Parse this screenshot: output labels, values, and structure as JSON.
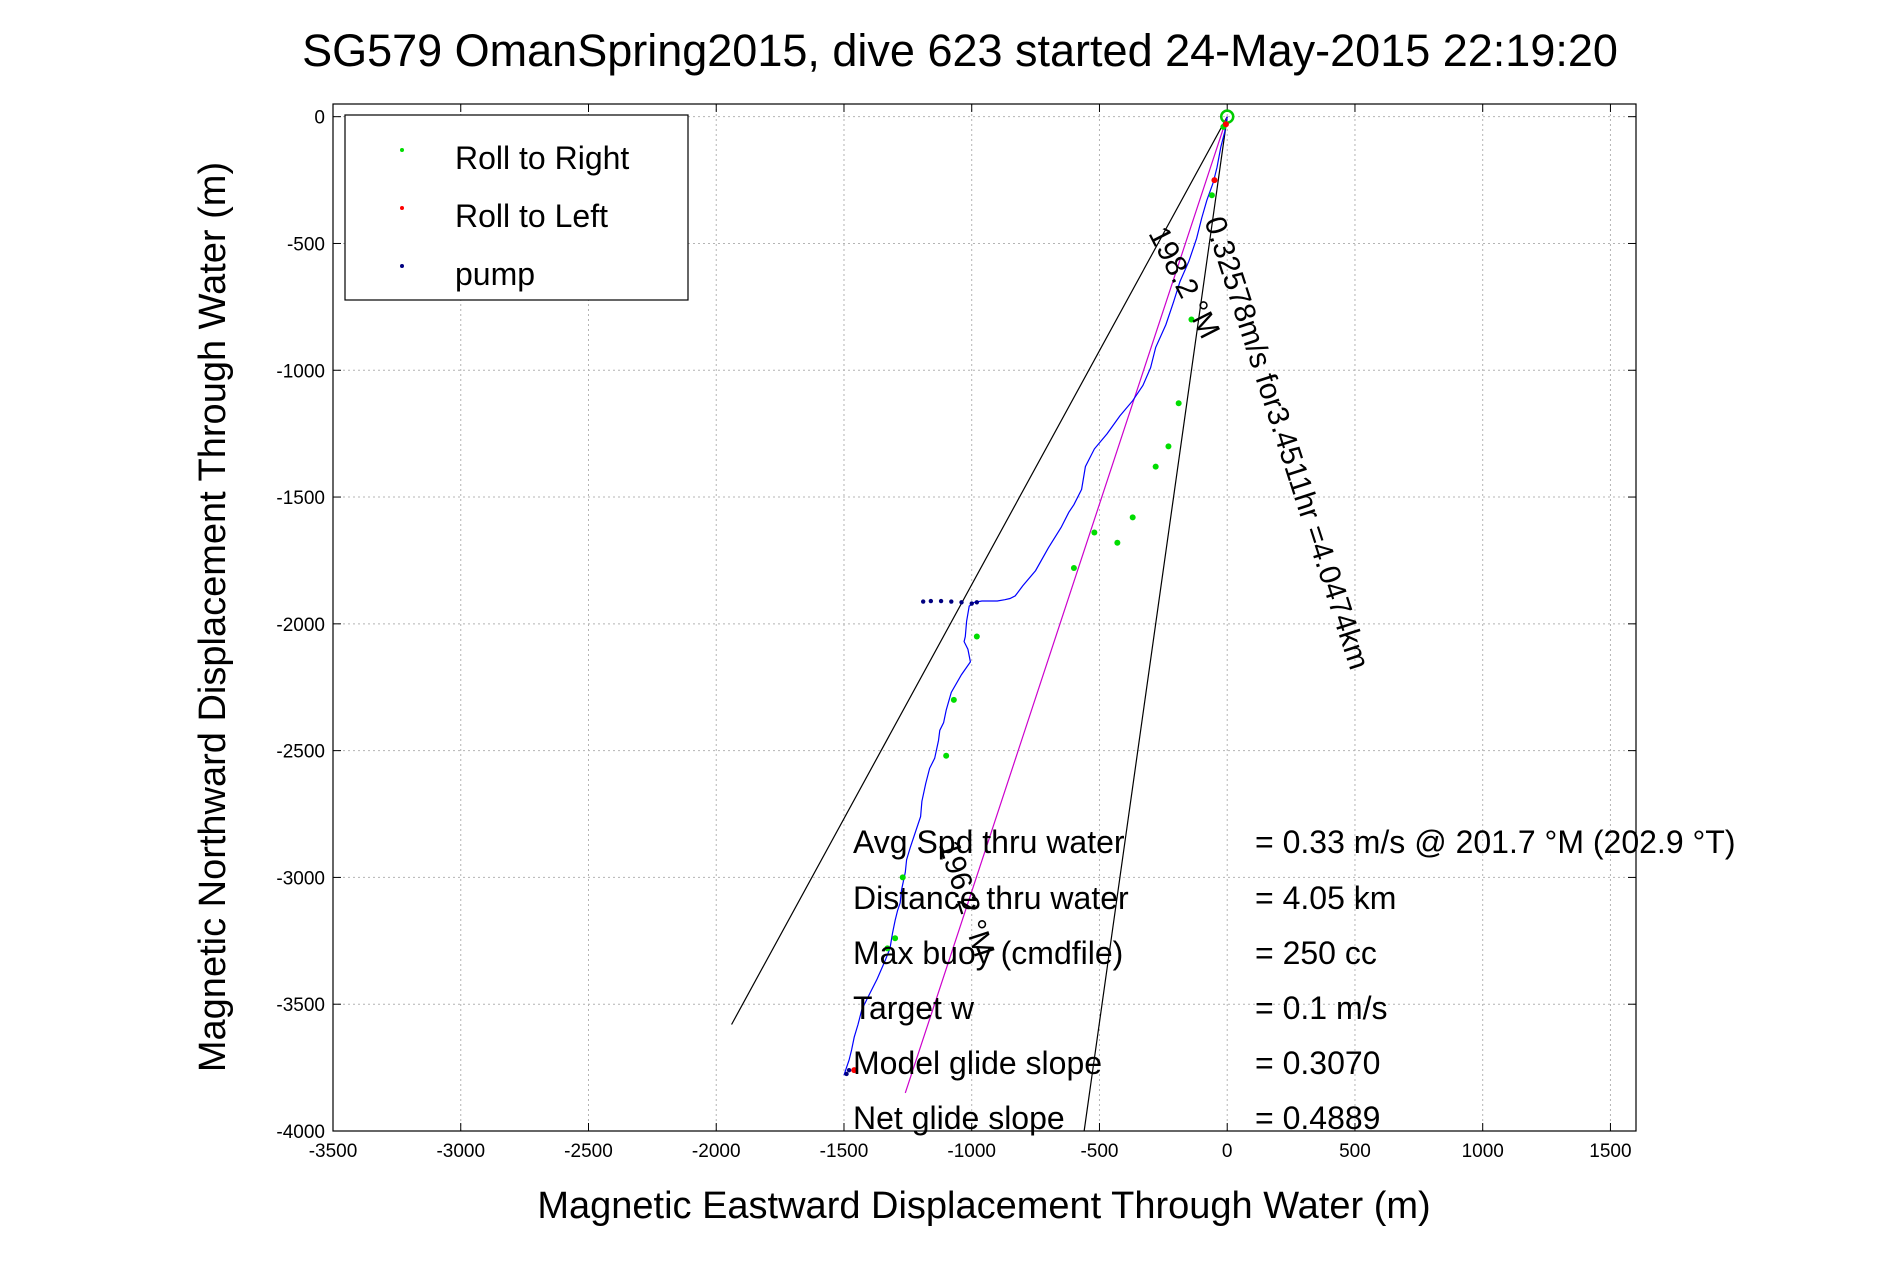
{
  "chart_data": {
    "type": "line",
    "title": "SG579 OmanSpring2015, dive 623 started 24-May-2015 22:19:20",
    "xlabel": "Magnetic Eastward Displacement Through Water (m)",
    "ylabel": "Magnetic Northward Displacement Through Water (m)",
    "xlim": [
      -3500,
      1600
    ],
    "ylim": [
      -4000,
      50
    ],
    "x_ticks": [
      -3500,
      -3000,
      -2500,
      -2000,
      -1500,
      -1000,
      -500,
      0,
      500,
      1000,
      1500
    ],
    "y_ticks": [
      0,
      -500,
      -1000,
      -1500,
      -2000,
      -2500,
      -3000,
      -3500,
      -4000
    ],
    "grid": true,
    "legend_position": "top-left",
    "legend": [
      {
        "label": "Roll to Right",
        "color": "#00dd00",
        "marker": "dot"
      },
      {
        "label": "Roll to Left",
        "color": "#ff0000",
        "marker": "dot"
      },
      {
        "label": "pump",
        "color": "#000080",
        "marker": "dot"
      }
    ],
    "series": [
      {
        "name": "track",
        "color": "#0000ff",
        "x": [
          0,
          -10,
          -25,
          -40,
          -55,
          -80,
          -100,
          -120,
          -150,
          -185,
          -210,
          -240,
          -280,
          -300,
          -330,
          -370,
          -420,
          -470,
          -520,
          -555,
          -570,
          -600,
          -620,
          -650,
          -700,
          -750,
          -800,
          -830,
          -850,
          -870,
          -900,
          -930,
          -960,
          -990,
          -1010,
          -1020,
          -1025,
          -1030,
          -1015,
          -1005,
          -1040,
          -1080,
          -1100,
          -1110,
          -1125,
          -1130,
          -1145,
          -1165,
          -1180,
          -1195,
          -1200,
          -1220,
          -1240,
          -1255,
          -1260,
          -1275,
          -1280,
          -1290,
          -1300,
          -1310,
          -1320,
          -1340,
          -1370,
          -1400,
          -1430,
          -1445,
          -1460,
          -1470,
          -1480,
          -1490,
          -1500
        ],
        "y": [
          0,
          -60,
          -120,
          -200,
          -260,
          -330,
          -400,
          -480,
          -570,
          -650,
          -730,
          -820,
          -910,
          -990,
          -1060,
          -1120,
          -1180,
          -1250,
          -1310,
          -1380,
          -1470,
          -1530,
          -1560,
          -1620,
          -1700,
          -1790,
          -1850,
          -1890,
          -1900,
          -1905,
          -1910,
          -1910,
          -1910,
          -1915,
          -1930,
          -1990,
          -2050,
          -2070,
          -2100,
          -2150,
          -2200,
          -2270,
          -2340,
          -2390,
          -2420,
          -2460,
          -2530,
          -2570,
          -2630,
          -2700,
          -2760,
          -2820,
          -2880,
          -2930,
          -2980,
          -3050,
          -3100,
          -3130,
          -3170,
          -3220,
          -3280,
          -3330,
          -3400,
          -3460,
          -3520,
          -3580,
          -3630,
          -3680,
          -3720,
          -3750,
          -3780
        ]
      }
    ],
    "roll_right_points": [
      [
        -15,
        -40
      ],
      [
        -60,
        -310
      ],
      [
        -140,
        -800
      ],
      [
        -190,
        -1130
      ],
      [
        -230,
        -1300
      ],
      [
        -280,
        -1380
      ],
      [
        -370,
        -1580
      ],
      [
        -430,
        -1680
      ],
      [
        -520,
        -1640
      ],
      [
        -600,
        -1780
      ],
      [
        -980,
        -2050
      ],
      [
        -1070,
        -2300
      ],
      [
        -1100,
        -2520
      ],
      [
        -1270,
        -3000
      ],
      [
        -1300,
        -3240
      ],
      [
        -1330,
        -3280
      ]
    ],
    "roll_left_points": [
      [
        -5,
        -30
      ],
      [
        -50,
        -250
      ],
      [
        -1460,
        -3760
      ]
    ],
    "pump_points": [
      [
        -980,
        -1915
      ],
      [
        -1000,
        -1920
      ],
      [
        -1040,
        -1915
      ],
      [
        -1080,
        -1912
      ],
      [
        -1120,
        -1910
      ],
      [
        -1160,
        -1910
      ],
      [
        -1190,
        -1912
      ],
      [
        -1480,
        -3760
      ],
      [
        -1490,
        -3775
      ]
    ],
    "heading_lines": [
      {
        "color": "#000000",
        "from": [
          0,
          0
        ],
        "to": [
          -1940,
          -3580
        ]
      },
      {
        "color": "#000000",
        "from": [
          0,
          0
        ],
        "to": [
          -560,
          -4000
        ]
      },
      {
        "color": "#cc00cc",
        "from": [
          0,
          0
        ],
        "to": [
          -1260,
          -3850
        ]
      }
    ],
    "annotations": [
      {
        "text": "198.2 °M",
        "x": -310,
        "y": -460,
        "angle_deg": 63
      },
      {
        "text": "0.32578m/s for3.4511hr =4.0474km",
        "x": -90,
        "y": -410,
        "angle_deg": 72
      },
      {
        "text": "196.2 °M",
        "x": -1130,
        "y": -2870,
        "angle_deg": 72
      }
    ],
    "stats": [
      {
        "label": "Avg Spd thru water",
        "value": "=  0.33 m/s @ 201.7 °M (202.9 °T)"
      },
      {
        "label": "Distance thru water",
        "value": "=  4.05 km"
      },
      {
        "label": "Max buoy (cmdfile)",
        "value": "= 250 cc"
      },
      {
        "label": "Target w",
        "value": "= 0.1 m/s"
      },
      {
        "label": "Model glide slope",
        "value": "= 0.3070"
      },
      {
        "label": "Net glide slope",
        "value": "= 0.4889"
      }
    ]
  }
}
